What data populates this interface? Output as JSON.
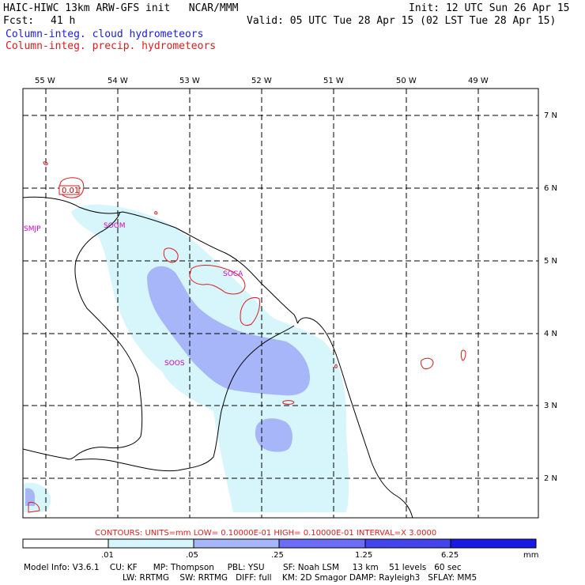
{
  "header": {
    "title": "HAIC-HIWC 13km ARW-GFS init   NCAR/MMM",
    "init": "Init: 12 UTC Sun 26 Apr 15",
    "fcst_label": "Fcst:",
    "fcst_value": "41 h",
    "valid": "Valid: 05 UTC Tue 28 Apr 15 (02 LST Tue 28 Apr 15)",
    "field1": "Column-integ. cloud hydrometeors",
    "field2": "Column-integ. precip. hydrometeors"
  },
  "axes": {
    "lon_labels": [
      "55 W",
      "54 W",
      "53 W",
      "52 W",
      "51 W",
      "50 W",
      "49 W"
    ],
    "lat_labels": [
      "7 N",
      "6 N",
      "5 N",
      "4 N",
      "3 N",
      "2 N"
    ]
  },
  "stations": [
    "SMJP",
    "SOGM",
    "SOCA",
    "SOOS"
  ],
  "contour_label": "0.01",
  "contours_info": "CONTOURS:  UNITS=mm  LOW= 0.10000E-01  HIGH= 0.10000E-01  INTERVAL=X  3.0000",
  "colorbar": {
    "labels": [
      ".01",
      ".05",
      ".25",
      "1.25",
      "6.25"
    ],
    "units": "mm",
    "colors": [
      "#ffffff",
      "#d6f6fc",
      "#a6b6f8",
      "#6c6cf6",
      "#4444ee",
      "#1a1ae6"
    ]
  },
  "model_info": {
    "line1": "Model Info: V3.6.1    CU: KF      MP: Thompson     PBL: YSU       SF: Noah LSM     13 km    51 levels   60 sec",
    "line2": "LW: RRTMG    SW: RRTMG   DIFF: full    KM: 2D Smagor DAMP: Rayleigh3   SFLAY: MM5"
  }
}
